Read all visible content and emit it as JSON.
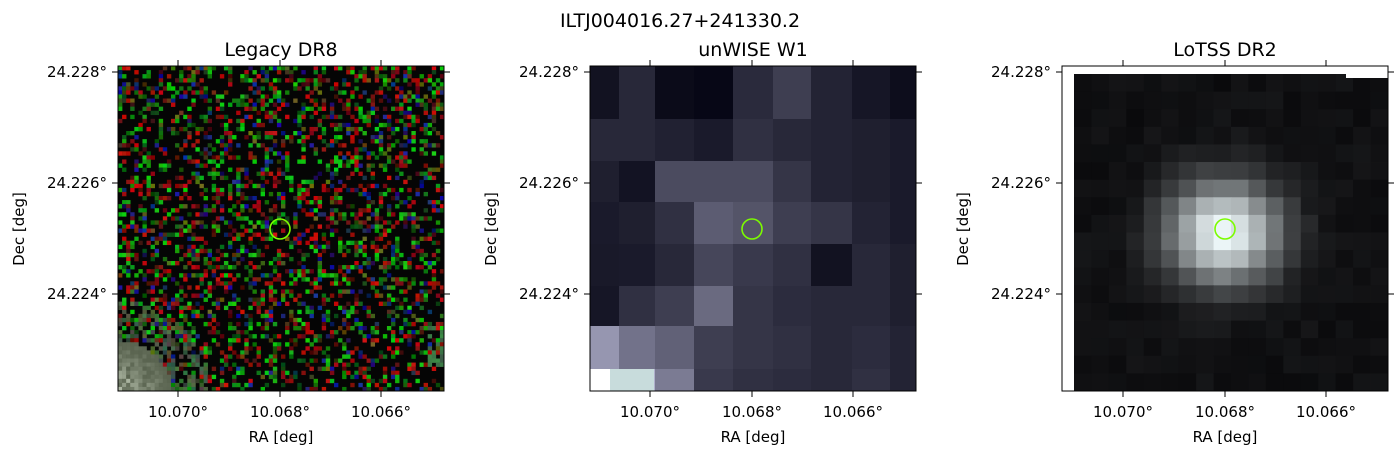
{
  "figure": {
    "suptitle": "ILTJ004016.27+241330.2"
  },
  "panels": [
    {
      "title": "Legacy DR8",
      "image_style": "rgb-noise",
      "xlabel": "RA [deg]",
      "ylabel": "Dec [deg]",
      "xticks": [
        "10.070°",
        "10.068°",
        "10.066°"
      ],
      "yticks": [
        "24.228°",
        "24.226°",
        "24.224°"
      ],
      "marker_color": "#7cfc00"
    },
    {
      "title": "unWISE W1",
      "image_style": "coarse-gray",
      "xlabel": "RA [deg]",
      "ylabel": "Dec [deg]",
      "xticks": [
        "10.070°",
        "10.068°",
        "10.066°"
      ],
      "yticks": [
        "24.228°",
        "24.226°",
        "24.224°"
      ],
      "marker_color": "#7cfc00"
    },
    {
      "title": "LoTSS DR2",
      "image_style": "radio-blob",
      "xlabel": "RA [deg]",
      "ylabel": "Dec [deg]",
      "xticks": [
        "10.070°",
        "10.068°",
        "10.066°"
      ],
      "yticks": [
        "24.228°",
        "24.226°",
        "24.224°"
      ],
      "marker_color": "#7cfc00"
    }
  ]
}
